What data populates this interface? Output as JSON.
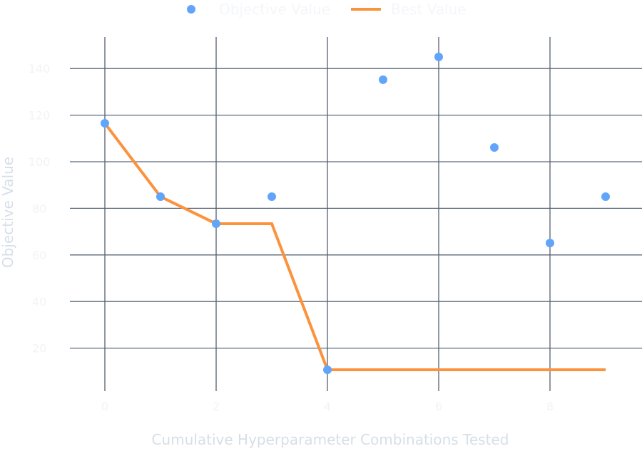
{
  "chart_data": {
    "type": "scatter",
    "title": "",
    "xlabel": "Cumulative Hyperparameter Combinations Tested",
    "ylabel": "Objective Value",
    "xlim": [
      -0.6,
      9.6
    ],
    "ylim": [
      0,
      155
    ],
    "x_ticks": [
      0,
      2,
      4,
      6,
      8
    ],
    "x_tick_labels": [
      "0",
      "2",
      "4",
      "6",
      "8"
    ],
    "y_ticks": [
      20,
      40,
      60,
      80,
      100,
      120,
      140
    ],
    "y_tick_labels": [
      "20",
      "40",
      "60",
      "80",
      "100",
      "120",
      "140"
    ],
    "grid": true,
    "legend": {
      "placement": "top-center",
      "entries": [
        "Objective Value",
        "Best Value"
      ]
    },
    "colors": {
      "objective": "#60a5fa",
      "best": "#fb923c"
    },
    "series": [
      {
        "name": "Objective Value",
        "kind": "scatter",
        "x": [
          0,
          1,
          2,
          3,
          4,
          5,
          6,
          7,
          8,
          9
        ],
        "values": [
          116.5,
          85,
          73.4,
          85,
          10.7,
          135.2,
          145,
          106.1,
          65.1,
          85
        ]
      },
      {
        "name": "Best Value",
        "kind": "line",
        "x": [
          0,
          1,
          2,
          3,
          4,
          5,
          6,
          7,
          8,
          9
        ],
        "values": [
          116.5,
          85,
          73.4,
          73.4,
          10.7,
          10.7,
          10.7,
          10.7,
          10.7,
          10.7
        ]
      }
    ]
  }
}
